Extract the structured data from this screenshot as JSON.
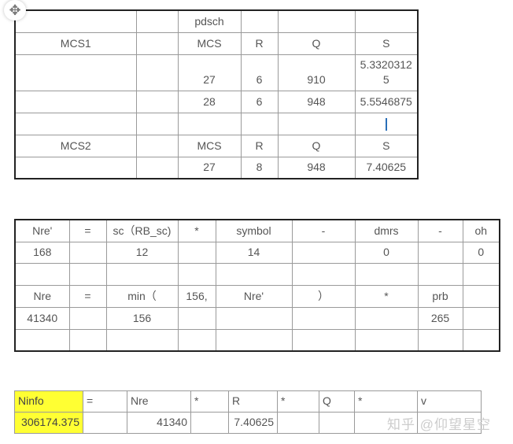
{
  "table1": {
    "col_widths": [
      154,
      53,
      80,
      47,
      98,
      80
    ],
    "row_heights": [
      28,
      28,
      46,
      28,
      28,
      28,
      28
    ],
    "rows": [
      [
        "",
        "",
        "pdsch",
        "",
        "",
        ""
      ],
      [
        "MCS1",
        "",
        "MCS",
        "R",
        "Q",
        "S"
      ],
      [
        "",
        "",
        "27",
        "6",
        "910",
        "5.3320312\n5"
      ],
      [
        "",
        "",
        "28",
        "6",
        "948",
        "5.5546875"
      ],
      [
        "",
        "",
        "",
        "",
        "",
        "|caret|"
      ],
      [
        "MCS2",
        "",
        "MCS",
        "R",
        "Q",
        "S"
      ],
      [
        "",
        "",
        "27",
        "8",
        "948",
        "7.40625"
      ]
    ]
  },
  "table2": {
    "col_widths": [
      69,
      47,
      91,
      48,
      97,
      80,
      80,
      57,
      47
    ],
    "row_heights": [
      28,
      27,
      28,
      28,
      28,
      28
    ],
    "rows": [
      [
        "Nre'",
        "=",
        "sc（RB_sc)",
        "*",
        "symbol",
        "-",
        "dmrs",
        "-",
        "oh"
      ],
      [
        "168",
        "",
        "12",
        "",
        "14",
        "",
        "0",
        "",
        "0"
      ],
      [
        "",
        "",
        "",
        "",
        "",
        "",
        "",
        "",
        ""
      ],
      [
        "Nre",
        "=",
        "min（",
        "156,",
        "Nre'",
        "）",
        "*",
        "prb",
        ""
      ],
      [
        "41340",
        "",
        "156",
        "",
        "",
        "",
        "",
        "265",
        ""
      ],
      [
        "",
        "",
        "",
        "",
        "",
        "",
        "",
        "",
        ""
      ]
    ]
  },
  "table3": {
    "col_widths": [
      87,
      56,
      81,
      48,
      62,
      53,
      45,
      80,
      81
    ],
    "row_heights": [
      27,
      27
    ],
    "highlight_color": "#ffff33",
    "rows": [
      [
        "Ninfo",
        "=",
        "Nre",
        "*",
        "R",
        "*",
        "Q",
        "*",
        "v"
      ],
      [
        "306174.375",
        "",
        "41340",
        "",
        "7.40625",
        "",
        "",
        "",
        ""
      ]
    ]
  },
  "move_handle_icon": "move-arrows-icon",
  "watermark": "知乎 @仰望星空"
}
